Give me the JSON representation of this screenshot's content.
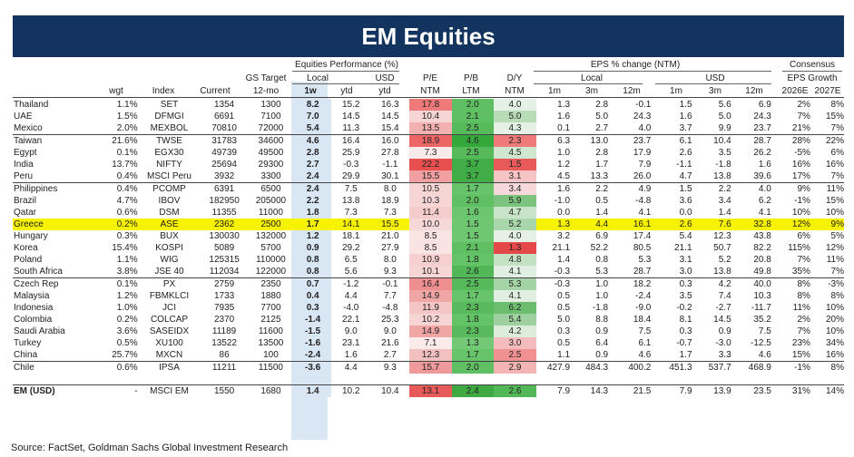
{
  "title": "EM Equities",
  "headers": {
    "wgt": "wgt",
    "index": "Index",
    "current": "Current",
    "gs_target_l1": "GS Target",
    "gs_target_l2": "12-mo",
    "perf_group": "Equities Performance (%)",
    "local": "Local",
    "usd": "USD",
    "w1": "1w",
    "ytd_local": "ytd",
    "ytd_usd": "ytd",
    "pe": "P/E",
    "pe_sub": "NTM",
    "pb": "P/B",
    "pb_sub": "LTM",
    "dy": "D/Y",
    "dy_sub": "NTM",
    "eps_group": "EPS % change (NTM)",
    "eps_local": "Local",
    "eps_usd": "USD",
    "m1": "1m",
    "m3": "3m",
    "m12": "12m",
    "m1u": "1m",
    "m3u": "3m",
    "m12u": "12m",
    "cons_l1": "Consensus",
    "cons_l2": "EPS Growth",
    "y2026": "2026E",
    "y2027": "2027E"
  },
  "rows": [
    {
      "country": "Thailand",
      "wgt": "1.1%",
      "index": "SET",
      "current": "1354",
      "target": "1300",
      "w1": "8.2",
      "ytd": "15.2",
      "ytdusd": "16.3",
      "pe": "17.8",
      "pb": "2.0",
      "dy": "4.0",
      "l1m": "1.3",
      "l3m": "2.8",
      "l12m": "-0.1",
      "u1m": "1.5",
      "u3m": "5.6",
      "u12m": "6.9",
      "e26": "2%",
      "e27": "8%",
      "pe_color": "#ee7a7a",
      "pb_color": "#5fbf63",
      "dy_color": "#e4f1e4"
    },
    {
      "country": "UAE",
      "wgt": "1.5%",
      "index": "DFMGI",
      "current": "6691",
      "target": "7100",
      "w1": "7.0",
      "ytd": "14.5",
      "ytdusd": "14.5",
      "pe": "10.4",
      "pb": "2.1",
      "dy": "5.0",
      "l1m": "1.6",
      "l3m": "5.0",
      "l12m": "24.3",
      "u1m": "1.6",
      "u3m": "5.0",
      "u12m": "24.3",
      "e26": "7%",
      "e27": "15%",
      "pe_color": "#f7d5d5",
      "pb_color": "#5fbf63",
      "dy_color": "#b7dcb7"
    },
    {
      "country": "Mexico",
      "wgt": "2.0%",
      "index": "MEXBOL",
      "current": "70810",
      "target": "72000",
      "w1": "5.4",
      "ytd": "11.3",
      "ytdusd": "15.4",
      "pe": "13.5",
      "pb": "2.5",
      "dy": "4.3",
      "l1m": "0.1",
      "l3m": "2.7",
      "l12m": "4.0",
      "u1m": "3.7",
      "u3m": "9.9",
      "u12m": "23.7",
      "e26": "21%",
      "e27": "7%",
      "pe_color": "#f2b0b0",
      "pb_color": "#56b95a",
      "dy_color": "#e4f1e4"
    },
    {
      "country": "Taiwan",
      "wgt": "21.6%",
      "index": "TWSE",
      "current": "31783",
      "target": "34600",
      "w1": "4.6",
      "ytd": "16.4",
      "ytdusd": "16.0",
      "pe": "18.9",
      "pb": "4.6",
      "dy": "2.3",
      "l1m": "6.3",
      "l3m": "13.0",
      "l12m": "23.7",
      "u1m": "6.1",
      "u3m": "10.4",
      "u12m": "28.7",
      "e26": "28%",
      "e27": "22%",
      "pe_color": "#ec6666",
      "pb_color": "#34a83a",
      "dy_color": "#ee7a7a",
      "sep": true
    },
    {
      "country": "Egypt",
      "wgt": "0.1%",
      "index": "EGX30",
      "current": "49739",
      "target": "49500",
      "w1": "2.8",
      "ytd": "25.9",
      "ytdusd": "27.8",
      "pe": "7.3",
      "pb": "2.5",
      "dy": "4.5",
      "l1m": "1.0",
      "l3m": "2.8",
      "l12m": "17.9",
      "u1m": "2.6",
      "u3m": "3.5",
      "u12m": "26.2",
      "e26": "-5%",
      "e27": "6%",
      "pe_color": "#fbeaea",
      "pb_color": "#56b95a",
      "dy_color": "#cfe7cf"
    },
    {
      "country": "India",
      "wgt": "13.7%",
      "index": "NIFTY",
      "current": "25694",
      "target": "29300",
      "w1": "2.7",
      "ytd": "-0.3",
      "ytdusd": "-1.1",
      "pe": "22.2",
      "pb": "3.7",
      "dy": "1.5",
      "l1m": "1.2",
      "l3m": "1.7",
      "l12m": "7.9",
      "u1m": "-1.1",
      "u3m": "-1.8",
      "u12m": "1.6",
      "e26": "16%",
      "e27": "16%",
      "pe_color": "#e85050",
      "pb_color": "#40ad46",
      "dy_color": "#e85a5a"
    },
    {
      "country": "Peru",
      "wgt": "0.4%",
      "index": "MSCI Peru",
      "current": "3932",
      "target": "3300",
      "w1": "2.4",
      "ytd": "29.9",
      "ytdusd": "30.1",
      "pe": "15.5",
      "pb": "3.7",
      "dy": "3.1",
      "l1m": "4.5",
      "l3m": "13.3",
      "l12m": "26.0",
      "u1m": "4.7",
      "u3m": "13.8",
      "u12m": "39.6",
      "e26": "17%",
      "e27": "7%",
      "pe_color": "#f0a0a0",
      "pb_color": "#40ad46",
      "dy_color": "#f6c4c4"
    },
    {
      "country": "Philippines",
      "wgt": "0.4%",
      "index": "PCOMP",
      "current": "6391",
      "target": "6500",
      "w1": "2.4",
      "ytd": "7.5",
      "ytdusd": "8.0",
      "pe": "10.5",
      "pb": "1.7",
      "dy": "3.4",
      "l1m": "1.6",
      "l3m": "2.2",
      "l12m": "4.9",
      "u1m": "1.5",
      "u3m": "2.2",
      "u12m": "4.0",
      "e26": "9%",
      "e27": "11%",
      "pe_color": "#f7d5d5",
      "pb_color": "#68c46b",
      "dy_color": "#f8d8d8",
      "sep": true
    },
    {
      "country": "Brazil",
      "wgt": "4.7%",
      "index": "IBOV",
      "current": "182950",
      "target": "205000",
      "w1": "2.2",
      "ytd": "13.8",
      "ytdusd": "18.9",
      "pe": "10.3",
      "pb": "2.0",
      "dy": "5.9",
      "l1m": "-1.0",
      "l3m": "0.5",
      "l12m": "-4.8",
      "u1m": "3.6",
      "u3m": "3.4",
      "u12m": "6.2",
      "e26": "-1%",
      "e27": "15%",
      "pe_color": "#f7d5d5",
      "pb_color": "#5fbf63",
      "dy_color": "#7cc47d"
    },
    {
      "country": "Qatar",
      "wgt": "0.6%",
      "index": "DSM",
      "current": "11355",
      "target": "11000",
      "w1": "1.8",
      "ytd": "7.3",
      "ytdusd": "7.3",
      "pe": "11.4",
      "pb": "1.6",
      "dy": "4.7",
      "l1m": "0.0",
      "l3m": "1.4",
      "l12m": "4.1",
      "u1m": "0.0",
      "u3m": "1.4",
      "u12m": "4.1",
      "e26": "10%",
      "e27": "10%",
      "pe_color": "#f5cccc",
      "pb_color": "#6cc66f",
      "dy_color": "#c8e4c8"
    },
    {
      "country": "Greece",
      "wgt": "0.2%",
      "index": "ASE",
      "current": "2362",
      "target": "2500",
      "w1": "1.7",
      "ytd": "14.1",
      "ytdusd": "15.5",
      "pe": "10.0",
      "pb": "1.5",
      "dy": "5.2",
      "l1m": "1.3",
      "l3m": "4.4",
      "l12m": "16.1",
      "u1m": "2.6",
      "u3m": "7.6",
      "u12m": "32.8",
      "e26": "12%",
      "e27": "9%",
      "pe_color": "#f7d8d8",
      "pb_color": "#6fc772",
      "dy_color": "#a9d6aa",
      "hi": true
    },
    {
      "country": "Hungary",
      "wgt": "0.3%",
      "index": "BUX",
      "current": "130030",
      "target": "132000",
      "w1": "1.2",
      "ytd": "18.1",
      "ytdusd": "21.0",
      "pe": "8.5",
      "pb": "1.5",
      "dy": "4.0",
      "l1m": "3.2",
      "l3m": "6.9",
      "l12m": "17.4",
      "u1m": "5.4",
      "u3m": "12.3",
      "u12m": "43.8",
      "e26": "6%",
      "e27": "5%",
      "pe_color": "#fae3e3",
      "pb_color": "#6fc772",
      "dy_color": "#e4f1e4"
    },
    {
      "country": "Korea",
      "wgt": "15.4%",
      "index": "KOSPI",
      "current": "5089",
      "target": "5700",
      "w1": "0.9",
      "ytd": "29.2",
      "ytdusd": "27.9",
      "pe": "8.5",
      "pb": "2.1",
      "dy": "1.3",
      "l1m": "21.1",
      "l3m": "52.2",
      "l12m": "80.5",
      "u1m": "21.1",
      "u3m": "50.7",
      "u12m": "82.2",
      "e26": "115%",
      "e27": "12%",
      "pe_color": "#fae3e3",
      "pb_color": "#5fbf63",
      "dy_color": "#e54848"
    },
    {
      "country": "Poland",
      "wgt": "1.1%",
      "index": "WIG",
      "current": "125315",
      "target": "110000",
      "w1": "0.8",
      "ytd": "6.5",
      "ytdusd": "8.0",
      "pe": "10.9",
      "pb": "1.8",
      "dy": "4.8",
      "l1m": "1.4",
      "l3m": "0.8",
      "l12m": "5.3",
      "u1m": "3.1",
      "u3m": "5.2",
      "u12m": "20.8",
      "e26": "7%",
      "e27": "11%",
      "pe_color": "#f6d0d0",
      "pb_color": "#64c267",
      "dy_color": "#c3e2c3"
    },
    {
      "country": "South Africa",
      "wgt": "3.8%",
      "index": "JSE 40",
      "current": "112034",
      "target": "122000",
      "w1": "0.8",
      "ytd": "5.6",
      "ytdusd": "9.3",
      "pe": "10.1",
      "pb": "2.6",
      "dy": "4.1",
      "l1m": "-0.3",
      "l3m": "5.3",
      "l12m": "28.7",
      "u1m": "3.0",
      "u3m": "13.8",
      "u12m": "49.8",
      "e26": "35%",
      "e27": "7%",
      "pe_color": "#f7d5d5",
      "pb_color": "#52b756",
      "dy_color": "#e0efe0"
    },
    {
      "country": "Czech Rep",
      "wgt": "0.1%",
      "index": "PX",
      "current": "2759",
      "target": "2350",
      "w1": "0.7",
      "ytd": "-1.2",
      "ytdusd": "-0.1",
      "pe": "16.4",
      "pb": "2.5",
      "dy": "5.3",
      "l1m": "-0.3",
      "l3m": "1.0",
      "l12m": "18.2",
      "u1m": "0.3",
      "u3m": "4.2",
      "u12m": "40.0",
      "e26": "8%",
      "e27": "-3%",
      "pe_color": "#ee8e8e",
      "pb_color": "#56b95a",
      "dy_color": "#a4d4a5",
      "sep": true
    },
    {
      "country": "Malaysia",
      "wgt": "1.2%",
      "index": "FBMKLCI",
      "current": "1733",
      "target": "1880",
      "w1": "0.4",
      "ytd": "4.4",
      "ytdusd": "7.7",
      "pe": "14.9",
      "pb": "1.7",
      "dy": "4.1",
      "l1m": "0.5",
      "l3m": "1.0",
      "l12m": "-2.4",
      "u1m": "3.5",
      "u3m": "7.4",
      "u12m": "10.3",
      "e26": "8%",
      "e27": "8%",
      "pe_color": "#f1a6a6",
      "pb_color": "#68c46b",
      "dy_color": "#e0efe0"
    },
    {
      "country": "Indonesia",
      "wgt": "1.0%",
      "index": "JCI",
      "current": "7935",
      "target": "7700",
      "w1": "0.3",
      "ytd": "-4.0",
      "ytdusd": "-4.8",
      "pe": "11.9",
      "pb": "2.3",
      "dy": "6.2",
      "l1m": "0.5",
      "l3m": "-1.8",
      "l12m": "-9.0",
      "u1m": "-0.2",
      "u3m": "-2.7",
      "u12m": "-11.7",
      "e26": "11%",
      "e27": "10%",
      "pe_color": "#f4c6c6",
      "pb_color": "#58ba5c",
      "dy_color": "#6cbe6e"
    },
    {
      "country": "Colombia",
      "wgt": "0.2%",
      "index": "COLCAP",
      "current": "2370",
      "target": "2125",
      "w1": "-1.4",
      "ytd": "22.1",
      "ytdusd": "25.3",
      "pe": "10.2",
      "pb": "1.8",
      "dy": "5.4",
      "l1m": "5.0",
      "l3m": "8.8",
      "l12m": "18.4",
      "u1m": "8.1",
      "u3m": "14.5",
      "u12m": "35.2",
      "e26": "2%",
      "e27": "20%",
      "pe_color": "#f7d5d5",
      "pb_color": "#64c267",
      "dy_color": "#9ed19f"
    },
    {
      "country": "Saudi Arabia",
      "wgt": "3.6%",
      "index": "SASEIDX",
      "current": "11189",
      "target": "11600",
      "w1": "-1.5",
      "ytd": "9.0",
      "ytdusd": "9.0",
      "pe": "14.9",
      "pb": "2.3",
      "dy": "4.2",
      "l1m": "0.3",
      "l3m": "0.9",
      "l12m": "7.5",
      "u1m": "0.3",
      "u3m": "0.9",
      "u12m": "7.5",
      "e26": "7%",
      "e27": "10%",
      "pe_color": "#f1a6a6",
      "pb_color": "#58ba5c",
      "dy_color": "#dcedd c"
    },
    {
      "country": "Turkey",
      "wgt": "0.5%",
      "index": "XU100",
      "current": "13522",
      "target": "13500",
      "w1": "-1.6",
      "ytd": "23.1",
      "ytdusd": "21.6",
      "pe": "7.1",
      "pb": "1.3",
      "dy": "3.0",
      "l1m": "0.5",
      "l3m": "6.4",
      "l12m": "6.1",
      "u1m": "-0.7",
      "u3m": "-3.0",
      "u12m": "-12.5",
      "e26": "23%",
      "e27": "34%",
      "pe_color": "#fbeaea",
      "pb_color": "#74c977",
      "dy_color": "#f4bcbc"
    },
    {
      "country": "China",
      "wgt": "25.7%",
      "index": "MXCN",
      "current": "86",
      "target": "100",
      "w1": "-2.4",
      "ytd": "1.6",
      "ytdusd": "2.7",
      "pe": "12.3",
      "pb": "1.7",
      "dy": "2.5",
      "l1m": "1.1",
      "l3m": "0.9",
      "l12m": "4.6",
      "u1m": "1.7",
      "u3m": "3.3",
      "u12m": "4.6",
      "e26": "15%",
      "e27": "16%",
      "pe_color": "#f3c0c0",
      "pb_color": "#68c46b",
      "dy_color": "#f09090"
    },
    {
      "country": "Chile",
      "wgt": "0.6%",
      "index": "IPSA",
      "current": "11211",
      "target": "11500",
      "w1": "-3.6",
      "ytd": "4.4",
      "ytdusd": "9.3",
      "pe": "15.7",
      "pb": "2.0",
      "dy": "2.9",
      "l1m": "427.9",
      "l3m": "484.3",
      "l12m": "400.2",
      "u1m": "451.3",
      "u3m": "537.7",
      "u12m": "468.9",
      "e26": "-1%",
      "e27": "8%",
      "pe_color": "#ef9a9a",
      "pb_color": "#5fbf63",
      "dy_color": "#f3b4b4",
      "sep": true
    }
  ],
  "total": {
    "country": "EM (USD)",
    "wgt": "-",
    "index": "MSCI EM",
    "current": "1550",
    "target": "1680",
    "w1": "1.4",
    "ytd": "10.2",
    "ytdusd": "10.4",
    "pe": "13.1",
    "pb": "2.4",
    "dy": "2.6",
    "l1m": "7.9",
    "l3m": "14.3",
    "l12m": "21.5",
    "u1m": "7.9",
    "u3m": "13.9",
    "u12m": "23.5",
    "e26": "31%",
    "e27": "14%",
    "pe_color": "#e85a5a",
    "pb_color": "#3ea843",
    "dy_color": "#52b756"
  },
  "source": "Source: FactSet, Goldman Sachs Global Investment Research"
}
